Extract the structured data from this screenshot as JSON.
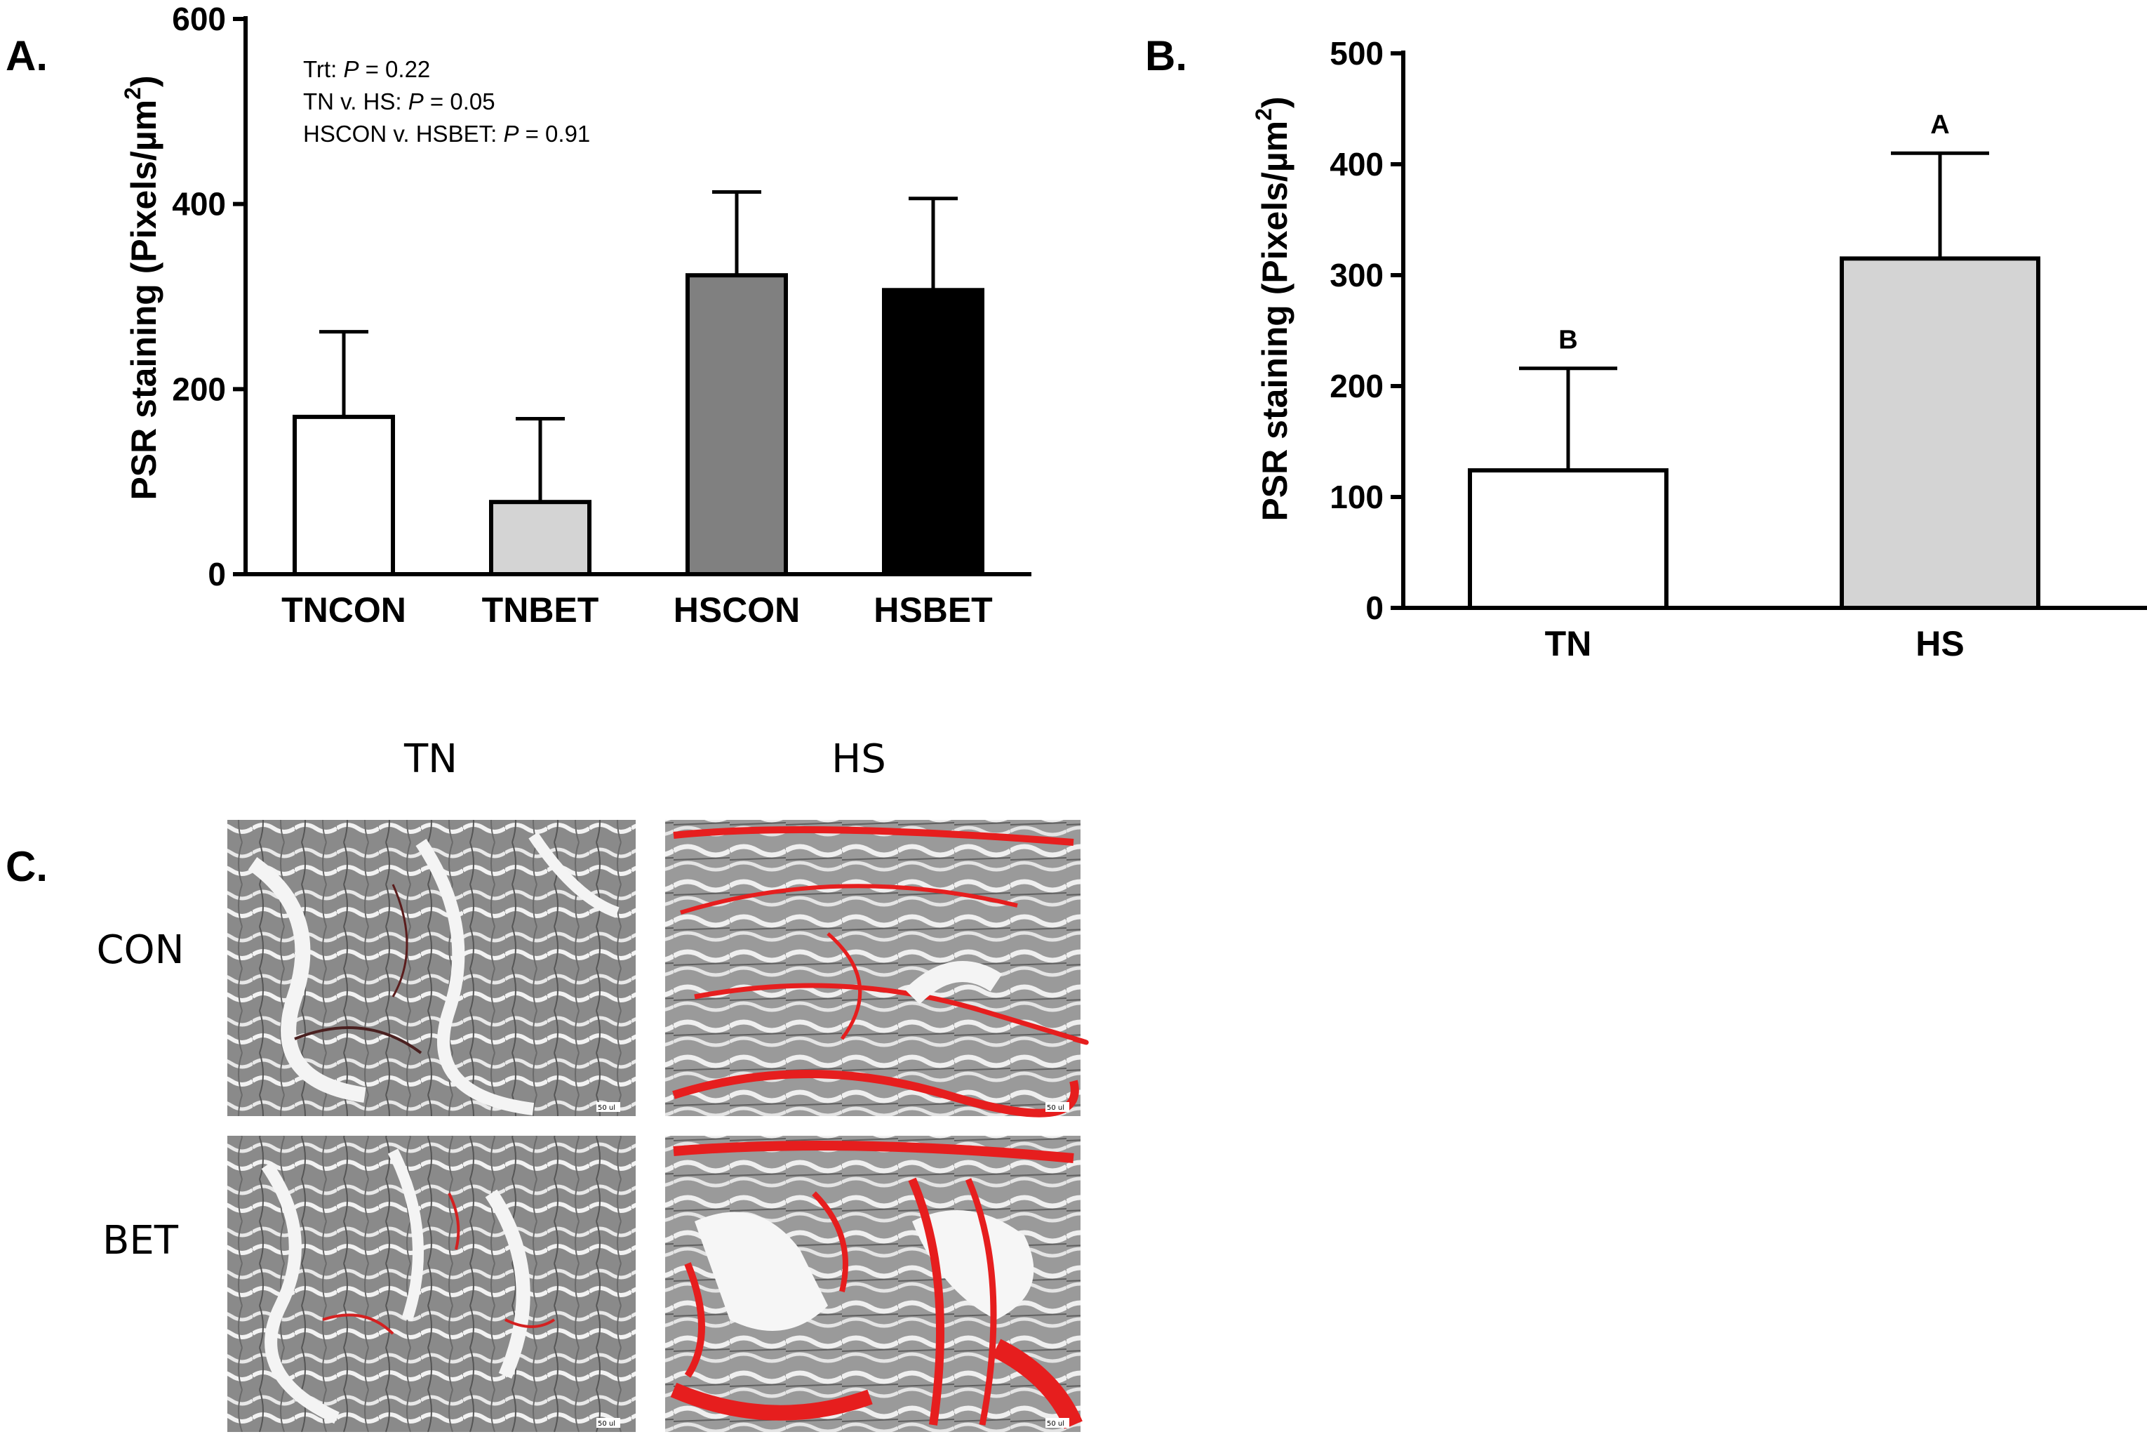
{
  "panels": {
    "a": "A.",
    "b": "B.",
    "c": "C."
  },
  "colors": {
    "tncon": "#ffffff",
    "tnbet": "#d4d4d4",
    "hscon": "#808080",
    "hsbet": "#000000",
    "tn": "#ffffff",
    "hs": "#d4d4d4",
    "psr_red": "#e61e1e"
  },
  "chart_data": [
    {
      "type": "bar",
      "panel": "A.",
      "categories": [
        "TNCON",
        "TNBET",
        "HSCON",
        "HSBET"
      ],
      "values": [
        170,
        78,
        323,
        307
      ],
      "error_upper": [
        262,
        168,
        413,
        406
      ],
      "ylabel_main": "PSR staining (Pixels/µm",
      "ylabel_sup": "2",
      "ylabel_end": ")",
      "ylim": [
        0,
        600
      ],
      "yticks": [
        "0",
        "200",
        "400",
        "600"
      ],
      "annotations": [
        {
          "prefix": "Trt: ",
          "p": "P",
          "suffix": " = 0.22"
        },
        {
          "prefix": "TN v. HS: ",
          "p": "P",
          "suffix": " = 0.05"
        },
        {
          "prefix": "HSCON v. HSBET: ",
          "p": "P",
          "suffix": " = 0.91"
        }
      ],
      "grid": false
    },
    {
      "type": "bar",
      "panel": "B.",
      "categories": [
        "TN",
        "HS"
      ],
      "values": [
        124,
        315
      ],
      "error_upper": [
        216,
        410
      ],
      "significance": [
        "B",
        "A"
      ],
      "ylabel_main": "PSR staining (Pixels/µm",
      "ylabel_sup": "2",
      "ylabel_end": ")",
      "ylim": [
        0,
        500
      ],
      "yticks": [
        "0",
        "100",
        "200",
        "300",
        "400",
        "500"
      ],
      "grid": false
    }
  ],
  "micrographs": {
    "col_labels": [
      "TN",
      "HS"
    ],
    "row_labels": [
      "CON",
      "BET"
    ],
    "scale_bar_text": "50 ul",
    "images": [
      {
        "row": "CON",
        "col": "TN",
        "red_level": 0.08
      },
      {
        "row": "CON",
        "col": "HS",
        "red_level": 0.35
      },
      {
        "row": "BET",
        "col": "TN",
        "red_level": 0.12
      },
      {
        "row": "BET",
        "col": "HS",
        "red_level": 0.75
      }
    ]
  }
}
